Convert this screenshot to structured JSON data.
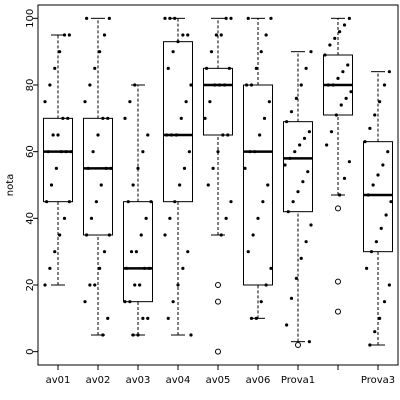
{
  "chart_data": {
    "type": "boxplot",
    "y_label": "nota",
    "categories": [
      "av01",
      "av02",
      "av03",
      "av04",
      "av05",
      "av06",
      "Prova1",
      null,
      "Prova3"
    ],
    "ylim": [
      -4,
      104
    ],
    "yticks": [
      0,
      20,
      40,
      60,
      80,
      100
    ],
    "boxes": [
      {
        "whisker_low": 20,
        "q1": 45,
        "median": 60,
        "q3": 70,
        "whisker_high": 95,
        "outliers": [],
        "points": [
          20,
          25,
          30,
          35,
          40,
          45,
          45,
          50,
          55,
          60,
          60,
          60,
          60,
          65,
          65,
          70,
          70,
          75,
          80,
          85,
          90,
          95,
          95
        ]
      },
      {
        "whisker_low": 5,
        "q1": 35,
        "median": 55,
        "q3": 70,
        "whisker_high": 100,
        "outliers": [],
        "points": [
          5,
          10,
          15,
          20,
          20,
          25,
          30,
          35,
          35,
          40,
          45,
          50,
          55,
          55,
          55,
          60,
          65,
          70,
          70,
          75,
          80,
          85,
          90,
          95,
          100,
          100
        ]
      },
      {
        "whisker_low": 5,
        "q1": 15,
        "median": 25,
        "q3": 45,
        "whisker_high": 80,
        "outliers": [],
        "points": [
          5,
          5,
          10,
          10,
          15,
          15,
          20,
          20,
          25,
          25,
          25,
          30,
          30,
          35,
          40,
          45,
          45,
          50,
          55,
          60,
          65,
          70,
          75,
          80
        ]
      },
      {
        "whisker_low": 5,
        "q1": 45,
        "median": 65,
        "q3": 93,
        "whisker_high": 100,
        "outliers": [],
        "points": [
          5,
          10,
          15,
          20,
          25,
          30,
          35,
          40,
          45,
          50,
          55,
          60,
          65,
          65,
          65,
          70,
          75,
          80,
          85,
          90,
          93,
          95,
          95,
          100,
          100,
          100
        ]
      },
      {
        "whisker_low": 35,
        "q1": 65,
        "median": 80,
        "q3": 85,
        "whisker_high": 100,
        "outliers": [
          20,
          15,
          0
        ],
        "points": [
          35,
          40,
          45,
          50,
          55,
          60,
          65,
          65,
          70,
          75,
          80,
          80,
          80,
          85,
          85,
          90,
          95,
          95,
          100,
          100
        ]
      },
      {
        "whisker_low": 10,
        "q1": 20,
        "median": 60,
        "q3": 80,
        "whisker_high": 100,
        "outliers": [],
        "points": [
          10,
          10,
          15,
          20,
          25,
          30,
          35,
          40,
          45,
          50,
          55,
          60,
          60,
          65,
          70,
          75,
          80,
          80,
          85,
          90,
          95,
          100,
          100
        ]
      },
      {
        "whisker_low": 3,
        "q1": 42,
        "median": 58,
        "q3": 69,
        "whisker_high": 90,
        "outliers": [
          2
        ],
        "points": [
          3,
          8,
          16,
          22,
          28,
          33,
          38,
          42,
          45,
          48,
          51,
          54,
          56,
          58,
          60,
          62,
          64,
          66,
          69,
          72,
          76,
          80,
          85,
          90
        ]
      },
      {
        "whisker_low": 47,
        "q1": 71,
        "median": 80,
        "q3": 89,
        "whisker_high": 100,
        "outliers": [
          43,
          21,
          12
        ],
        "points": [
          47,
          52,
          57,
          62,
          66,
          71,
          74,
          76,
          78,
          80,
          80,
          82,
          84,
          86,
          89,
          92,
          94,
          96,
          98,
          100
        ]
      },
      {
        "whisker_low": 2,
        "q1": 30,
        "median": 47,
        "q3": 63,
        "whisker_high": 84,
        "outliers": [],
        "points": [
          2,
          6,
          10,
          15,
          20,
          25,
          30,
          33,
          37,
          41,
          45,
          47,
          50,
          53,
          56,
          60,
          63,
          67,
          71,
          75,
          80,
          84
        ]
      }
    ]
  }
}
